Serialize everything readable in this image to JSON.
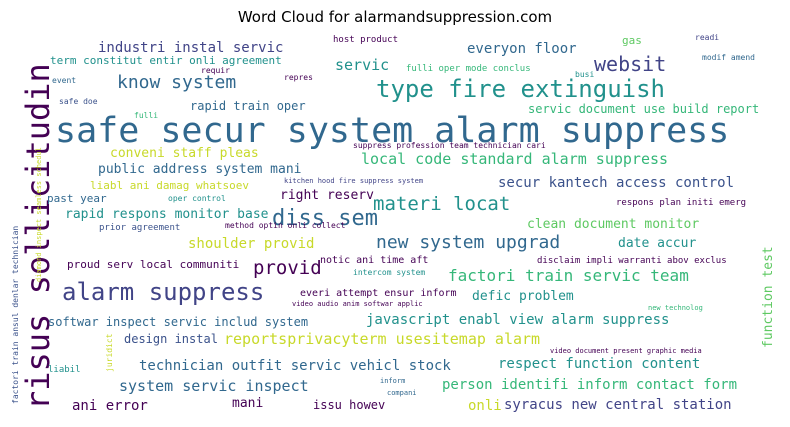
{
  "title": "Word Cloud for alarmandsuppression.com",
  "colors": {
    "purple": "#440154",
    "indigo": "#3b528b",
    "blue": "#31688e",
    "teal": "#21918c",
    "green": "#35b779",
    "lime": "#5ec962",
    "yellow": "#c8d92a",
    "navy": "#414487"
  },
  "words": {
    "safe_secur": "safe secur system alarm suppress",
    "risus": "risus sollicitudin",
    "type_fire": "type fire extinguish",
    "alarm_suppress": "alarm suppress",
    "diss_sem": "diss sem",
    "websit": "websit",
    "know_system": "know system",
    "materi_locat": "materi locat",
    "new_system_upgrad": "new system upgrad",
    "provid": "provid",
    "factori_train": "factori train servic team",
    "local_code": "local code standard alarm suppress",
    "industri": "industri instal servic",
    "everyon": "everyon floor",
    "servic": "servic",
    "secur_kantech": "secur kantech access control",
    "reportsprivacy": "reportsprivacyterm usesitemap alarm",
    "javascript": "javascript enabl view alarm suppress",
    "person_identifi": "person identifi inform contact form",
    "technician_outfit": "technician outfit servic vehicl stock",
    "system_servic_inspect": "system servic inspect",
    "respect_function": "respect function content",
    "syracus": "syracus new central station",
    "shoulder_provid": "shoulder provid",
    "conveni_staff": "conveni staff pleas",
    "public_address": "public address system mani",
    "rapid_respons": "rapid respons monitor base",
    "clean_document": "clean document monitor",
    "right_reserv": "right reserv",
    "date_accur": "date accur",
    "defic_problem": "defic problem",
    "softwar_inspect": "softwar inspect servic includ system",
    "ani_error": "ani error",
    "mani": "mani",
    "issu_howev": "issu howev",
    "onli": "onli",
    "design_instal": "design instal",
    "rapid_train_oper": "rapid train oper",
    "servic_document": "servic document use build report",
    "term_constitut": "term constitut entir onli agreement",
    "host_product": "host product",
    "gas": "gas",
    "readi": "readi",
    "modif_amend": "modif amend",
    "fulli_oper": "fulli oper mode conclus",
    "busi": "busi",
    "requir": "requir",
    "repres": "repres",
    "event": "event",
    "safe_doe": "safe doe",
    "fulli": "fulli",
    "suppress_profession": "suppress profession team technician cari",
    "kitchen_hood": "kitchen hood fire suppress system",
    "liabl_ani": "liabl ani damag whatsoev",
    "past_year": "past year",
    "oper_control": "oper control",
    "respons_plan": "respons plan initi emerg",
    "prior_agreement": "prior agreement",
    "method_optin": "method optin onli collect",
    "proud_serv": "proud serv local communiti",
    "notic_ani": "notic ani time aft",
    "disclaim": "disclaim impli warranti abov exclus",
    "intercom": "intercom system",
    "diamond_inspect": "diamond inspect seamless schedul",
    "everi_attempt": "everi attempt ensur inform",
    "video_audio": "video audio anim softwar applic",
    "new_technolog": "new technolog",
    "video_document": "video document present graphic media",
    "inform": "inform",
    "compani": "compani",
    "liabil": "liabil",
    "juridict": "juridict",
    "function_test": "function test",
    "factori_train_ansul": "factori train ansul denlar technician"
  }
}
